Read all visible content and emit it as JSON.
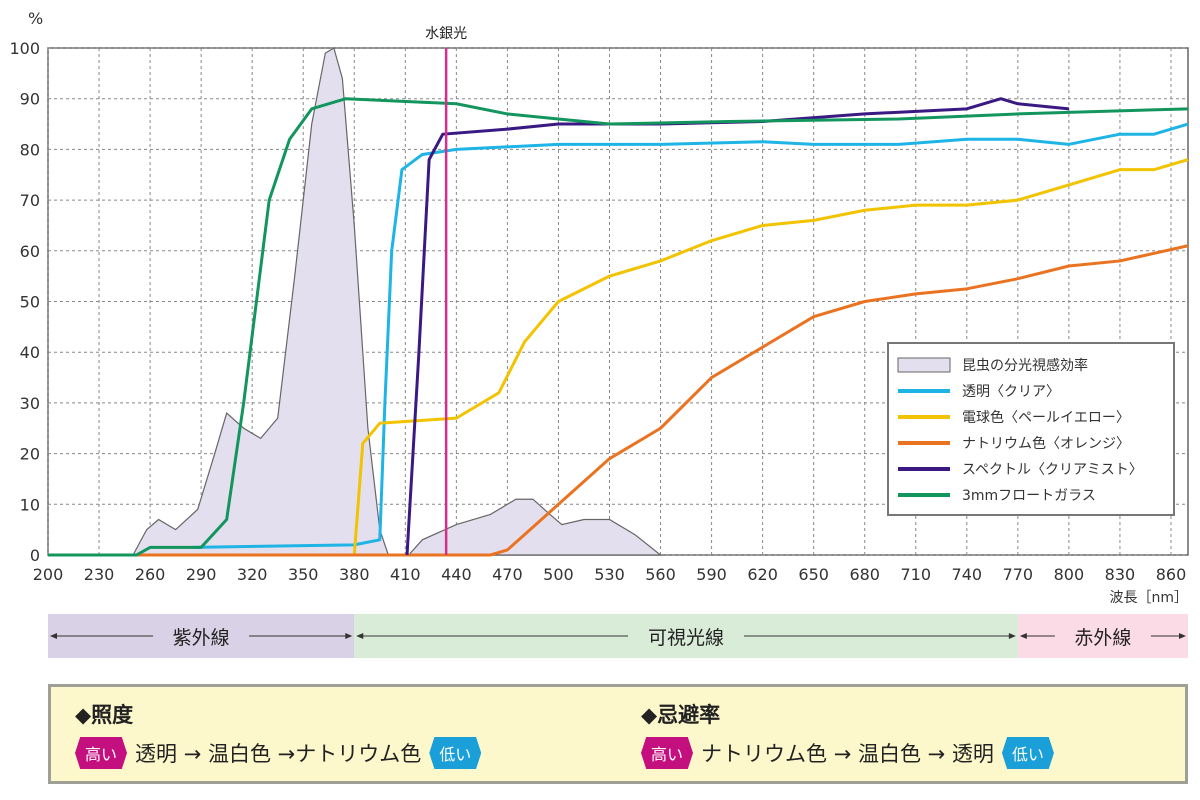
{
  "chart_data": {
    "type": "line",
    "y_unit": "%",
    "xlabel": "波長［nm］",
    "xlim": [
      200,
      870
    ],
    "ylim": [
      0,
      100
    ],
    "xticks": [
      200,
      230,
      260,
      290,
      320,
      350,
      380,
      410,
      440,
      470,
      500,
      530,
      560,
      590,
      620,
      650,
      680,
      710,
      740,
      770,
      800,
      830,
      860
    ],
    "yticks": [
      0,
      10,
      20,
      30,
      40,
      50,
      60,
      70,
      80,
      90,
      100
    ],
    "grid": true,
    "legend_position": "bottom-right",
    "annotation": {
      "label": "水銀光",
      "x": 434,
      "color": "#d2308a"
    },
    "series": [
      {
        "name": "昆虫の分光視感効率",
        "kind": "area",
        "color": "#e4dfee",
        "stroke": "#666666",
        "points": [
          [
            250,
            0
          ],
          [
            258,
            5
          ],
          [
            265,
            7
          ],
          [
            275,
            5
          ],
          [
            288,
            9
          ],
          [
            298,
            20
          ],
          [
            305,
            28
          ],
          [
            315,
            25
          ],
          [
            325,
            23
          ],
          [
            335,
            27
          ],
          [
            345,
            55
          ],
          [
            355,
            85
          ],
          [
            363,
            99
          ],
          [
            368,
            100
          ],
          [
            373,
            94
          ],
          [
            380,
            65
          ],
          [
            388,
            25
          ],
          [
            395,
            5
          ],
          [
            400,
            0
          ],
          [
            412,
            0
          ],
          [
            420,
            3
          ],
          [
            440,
            6
          ],
          [
            460,
            8
          ],
          [
            475,
            11
          ],
          [
            485,
            11
          ],
          [
            495,
            8
          ],
          [
            502,
            6
          ],
          [
            515,
            7
          ],
          [
            530,
            7
          ],
          [
            545,
            4
          ],
          [
            560,
            0
          ]
        ]
      },
      {
        "name": "透明〈クリア〉",
        "color": "#1eb4e6",
        "points": [
          [
            285,
            1.5
          ],
          [
            380,
            2
          ],
          [
            395,
            3
          ],
          [
            398,
            30
          ],
          [
            402,
            60
          ],
          [
            408,
            76
          ],
          [
            420,
            79
          ],
          [
            440,
            80
          ],
          [
            500,
            81
          ],
          [
            560,
            81
          ],
          [
            620,
            81.5
          ],
          [
            650,
            81
          ],
          [
            700,
            81
          ],
          [
            740,
            82
          ],
          [
            770,
            82
          ],
          [
            800,
            81
          ],
          [
            830,
            83
          ],
          [
            850,
            83
          ],
          [
            870,
            85
          ]
        ]
      },
      {
        "name": "電球色〈ペールイエロー〉",
        "color": "#f2c300",
        "points": [
          [
            200,
            0
          ],
          [
            380,
            0
          ],
          [
            385,
            22
          ],
          [
            395,
            26
          ],
          [
            440,
            27
          ],
          [
            465,
            32
          ],
          [
            480,
            42
          ],
          [
            500,
            50
          ],
          [
            530,
            55
          ],
          [
            560,
            58
          ],
          [
            590,
            62
          ],
          [
            620,
            65
          ],
          [
            650,
            66
          ],
          [
            680,
            68
          ],
          [
            710,
            69
          ],
          [
            740,
            69
          ],
          [
            770,
            70
          ],
          [
            800,
            73
          ],
          [
            830,
            76
          ],
          [
            850,
            76
          ],
          [
            870,
            78
          ]
        ]
      },
      {
        "name": "ナトリウム色〈オレンジ〉",
        "color": "#ea7322",
        "points": [
          [
            200,
            0
          ],
          [
            460,
            0
          ],
          [
            470,
            1
          ],
          [
            480,
            4
          ],
          [
            500,
            10
          ],
          [
            530,
            19
          ],
          [
            560,
            25
          ],
          [
            590,
            35
          ],
          [
            620,
            41
          ],
          [
            650,
            47
          ],
          [
            680,
            50
          ],
          [
            710,
            51.5
          ],
          [
            740,
            52.5
          ],
          [
            770,
            54.5
          ],
          [
            800,
            57
          ],
          [
            830,
            58
          ],
          [
            870,
            61
          ]
        ]
      },
      {
        "name": "スペクトル〈クリアミスト〉",
        "color": "#3a1a82",
        "points": [
          [
            411,
            0
          ],
          [
            418,
            40
          ],
          [
            424,
            78
          ],
          [
            432,
            83
          ],
          [
            470,
            84
          ],
          [
            500,
            85
          ],
          [
            560,
            85
          ],
          [
            620,
            85.5
          ],
          [
            680,
            87
          ],
          [
            740,
            88
          ],
          [
            760,
            90
          ],
          [
            770,
            89
          ],
          [
            800,
            88
          ]
        ]
      },
      {
        "name": "3mmフロートガラス",
        "color": "#13955e",
        "points": [
          [
            200,
            0
          ],
          [
            252,
            0
          ],
          [
            260,
            1.5
          ],
          [
            290,
            1.5
          ],
          [
            305,
            7
          ],
          [
            315,
            30
          ],
          [
            330,
            70
          ],
          [
            342,
            82
          ],
          [
            355,
            88
          ],
          [
            375,
            90
          ],
          [
            440,
            89
          ],
          [
            470,
            87
          ],
          [
            500,
            86
          ],
          [
            530,
            85
          ],
          [
            600,
            85.5
          ],
          [
            700,
            86
          ],
          [
            770,
            87
          ],
          [
            870,
            88
          ]
        ]
      }
    ]
  },
  "bands": [
    {
      "label": "紫外線",
      "from": 200,
      "to": 380,
      "color": "#d9d1e6"
    },
    {
      "label": "可視光線",
      "from": 380,
      "to": 770,
      "color": "#d9ecd8"
    },
    {
      "label": "赤外線",
      "from": 770,
      "to": 870,
      "color": "#fbdbe5"
    }
  ],
  "info": {
    "illuminance": {
      "title": "◆照度",
      "high": "高い",
      "order": "透明 → 温白色 →ナトリウム色",
      "low": "低い"
    },
    "avoidance": {
      "title": "◆忌避率",
      "high": "高い",
      "order": "ナトリウム色 → 温白色 → 透明",
      "low": "低い"
    }
  }
}
